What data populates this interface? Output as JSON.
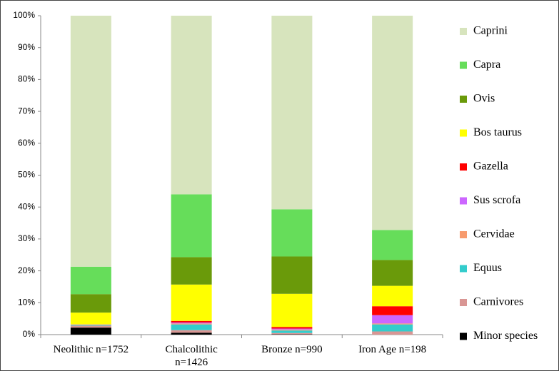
{
  "chart_data": {
    "type": "stacked_bar",
    "categories": [
      "Neolithic n=1752",
      "Chalcolithic\nn=1426",
      "Bronze n=990",
      "Iron Age n=198"
    ],
    "series": [
      {
        "name": "Minor species",
        "color": "#000000",
        "values": [
          2.2,
          0.6,
          0.1,
          0
        ]
      },
      {
        "name": "Carnivores",
        "color": "#d99694",
        "values": [
          0.6,
          0.8,
          0.4,
          1.0
        ]
      },
      {
        "name": "Equus",
        "color": "#33cccc",
        "values": [
          0.2,
          1.8,
          0.8,
          2.2
        ]
      },
      {
        "name": "Cervidae",
        "color": "#f79b6e",
        "values": [
          0.1,
          0.3,
          0.3,
          0.3
        ]
      },
      {
        "name": "Sus scrofa",
        "color": "#cc66ff",
        "values": [
          0.1,
          0.3,
          0.3,
          2.6
        ]
      },
      {
        "name": "Gazella",
        "color": "#ff0000",
        "values": [
          0,
          0.5,
          0.5,
          2.8
        ]
      },
      {
        "name": "Bos taurus",
        "color": "#ffff00",
        "values": [
          3.7,
          11.4,
          10.4,
          6.4
        ]
      },
      {
        "name": "Ovis",
        "color": "#6a9a0a",
        "values": [
          5.8,
          8.6,
          11.7,
          8.1
        ]
      },
      {
        "name": "Capra",
        "color": "#66dd5a",
        "values": [
          8.6,
          19.7,
          14.8,
          9.4
        ]
      },
      {
        "name": "Caprini",
        "color": "#d7e4bd",
        "values": [
          78.7,
          56,
          60.7,
          67.2
        ]
      }
    ],
    "ylim": [
      0,
      100
    ],
    "yticks": [
      {
        "value": 0,
        "label": "0%"
      },
      {
        "value": 10,
        "label": "10%"
      },
      {
        "value": 20,
        "label": "20%"
      },
      {
        "value": 30,
        "label": "30%"
      },
      {
        "value": 40,
        "label": "40%"
      },
      {
        "value": 50,
        "label": "50%"
      },
      {
        "value": 60,
        "label": "60%"
      },
      {
        "value": 70,
        "label": "70%"
      },
      {
        "value": 80,
        "label": "80%"
      },
      {
        "value": 90,
        "label": "90%"
      },
      {
        "value": 100,
        "label": "100%"
      }
    ],
    "legend": "right"
  }
}
